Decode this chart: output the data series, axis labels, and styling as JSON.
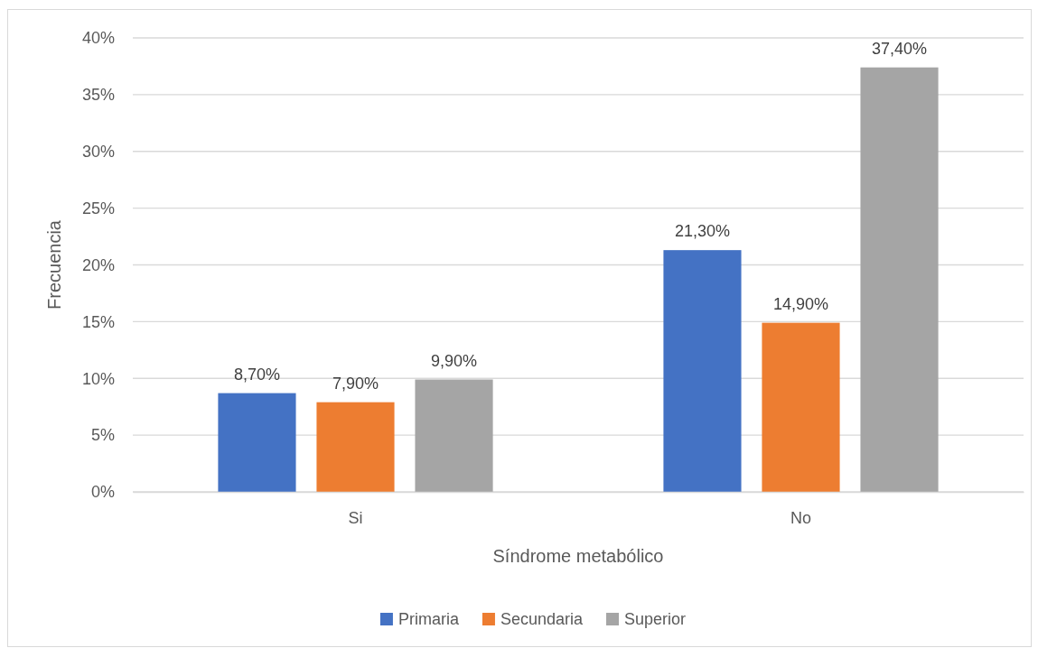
{
  "chart_data": {
    "type": "bar",
    "xlabel": "Síndrome metabólico",
    "ylabel": "Frecuencia",
    "categories": [
      "Si",
      "No"
    ],
    "series": [
      {
        "name": "Primaria",
        "color": "#4472c4",
        "values": [
          8.7,
          21.3
        ],
        "value_labels": [
          "8,70%",
          "21,30%"
        ]
      },
      {
        "name": "Secundaria",
        "color": "#ed7d31",
        "values": [
          7.9,
          14.9
        ],
        "value_labels": [
          "7,90%",
          "14,90%"
        ]
      },
      {
        "name": "Superior",
        "color": "#a5a5a5",
        "values": [
          9.9,
          37.4
        ],
        "value_labels": [
          "9,90%",
          "37,40%"
        ]
      }
    ],
    "ylim": [
      0,
      40
    ],
    "yticks": [
      {
        "value": 0,
        "label": "0%"
      },
      {
        "value": 5,
        "label": "5%"
      },
      {
        "value": 10,
        "label": "10%"
      },
      {
        "value": 15,
        "label": "15%"
      },
      {
        "value": 20,
        "label": "20%"
      },
      {
        "value": 25,
        "label": "25%"
      },
      {
        "value": 30,
        "label": "30%"
      },
      {
        "value": 35,
        "label": "35%"
      },
      {
        "value": 40,
        "label": "40%"
      }
    ],
    "grid": "y",
    "legend": "bottom"
  }
}
